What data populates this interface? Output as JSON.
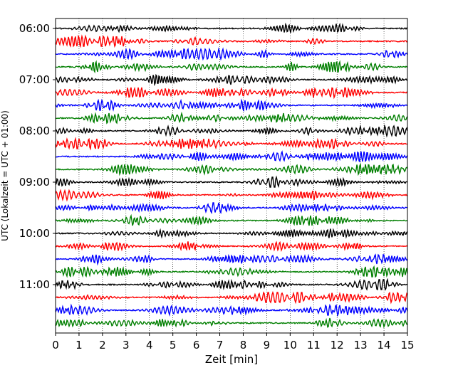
{
  "chart_data": {
    "type": "line",
    "title": "",
    "xlabel": "Zeit  [min]",
    "ylabel": "UTC (Lokalzeit = UTC + 01:00)",
    "xlim": [
      0,
      15
    ],
    "x_ticks": [
      "0",
      "1",
      "2",
      "3",
      "4",
      "5",
      "6",
      "7",
      "8",
      "9",
      "10",
      "11",
      "12",
      "13",
      "14",
      "15"
    ],
    "y_ticks": [
      "06:00",
      "07:00",
      "08:00",
      "09:00",
      "10:00",
      "11:00"
    ],
    "grid": "vertical dotted lines at each minute",
    "trace_minutes": 15,
    "trace_start_times": [
      "06:00",
      "06:15",
      "06:30",
      "06:45",
      "07:00",
      "07:15",
      "07:30",
      "07:45",
      "08:00",
      "08:15",
      "08:30",
      "08:45",
      "09:00",
      "09:15",
      "09:30",
      "09:45",
      "10:00",
      "10:15",
      "10:30",
      "10:45",
      "11:00",
      "11:15",
      "11:30",
      "11:45"
    ],
    "trace_colors": [
      "#000000",
      "#ff0000",
      "#0000ff",
      "#007f00"
    ]
  }
}
